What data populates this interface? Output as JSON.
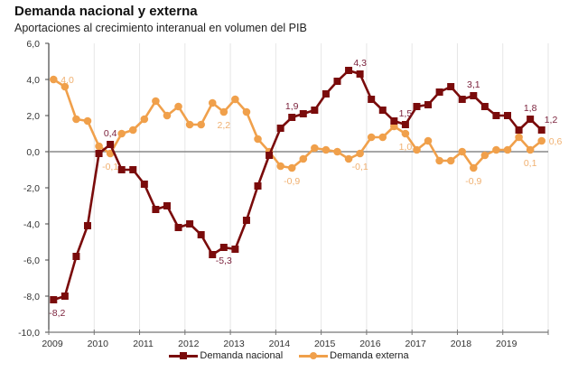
{
  "chart_data": {
    "type": "line",
    "title": "Demanda nacional y externa",
    "subtitle": "Aportaciones al crecimiento interanual en volumen del PIB",
    "xlabel": "",
    "ylabel": "",
    "ylim": [
      -10,
      6
    ],
    "yticks": [
      "6,0",
      "4,0",
      "2,0",
      "0,0",
      "-2,0",
      "-4,0",
      "-6,0",
      "-8,0",
      "-10,0"
    ],
    "ytick_values": [
      6,
      4,
      2,
      0,
      -2,
      -4,
      -6,
      -8,
      -10
    ],
    "xticks": [
      "2009",
      "2010",
      "2011",
      "2012",
      "2013",
      "2014",
      "2015",
      "2016",
      "2017",
      "2018",
      "2019"
    ],
    "x_frequency": "quarterly",
    "x_start": "2009 Q1",
    "x_end": "2019 Q4",
    "grid": "vertical-per-year",
    "legend_position": "bottom",
    "series": [
      {
        "name": "Demanda nacional",
        "color": "#7a0b0b",
        "label_color": "#7a1f3a",
        "marker": "square",
        "values": [
          -8.2,
          -8.0,
          -5.8,
          -4.1,
          -0.1,
          0.4,
          -1.0,
          -1.0,
          -1.8,
          -3.2,
          -3.0,
          -4.2,
          -4.0,
          -4.6,
          -5.7,
          -5.3,
          -5.4,
          -3.8,
          -1.9,
          -0.2,
          1.3,
          1.9,
          2.1,
          2.3,
          3.2,
          3.9,
          4.5,
          4.3,
          2.9,
          2.3,
          1.7,
          1.5,
          2.5,
          2.6,
          3.3,
          3.6,
          2.9,
          3.1,
          2.5,
          2.0,
          2.0,
          1.2,
          1.8,
          1.2
        ],
        "labels": [
          {
            "index": 0,
            "text": "-8,2",
            "pos": "below"
          },
          {
            "index": 5,
            "text": "0,4",
            "pos": "above"
          },
          {
            "index": 15,
            "text": "-5,3",
            "pos": "below"
          },
          {
            "index": 21,
            "text": "1,9",
            "pos": "above"
          },
          {
            "index": 27,
            "text": "4,3",
            "pos": "above"
          },
          {
            "index": 31,
            "text": "1,5",
            "pos": "above"
          },
          {
            "index": 37,
            "text": "3,1",
            "pos": "above"
          },
          {
            "index": 42,
            "text": "1,8",
            "pos": "above"
          },
          {
            "index": 43,
            "text": "1,2",
            "pos": "above-right"
          }
        ]
      },
      {
        "name": "Demanda externa",
        "color": "#f0a04b",
        "label_color": "#f0b070",
        "marker": "circle",
        "values": [
          4.0,
          3.6,
          1.8,
          1.7,
          0.3,
          -0.1,
          1.0,
          1.2,
          1.8,
          2.8,
          2.0,
          2.5,
          1.5,
          1.5,
          2.7,
          2.2,
          2.9,
          2.2,
          0.7,
          0.0,
          -0.8,
          -0.9,
          -0.4,
          0.2,
          0.1,
          0.0,
          -0.4,
          -0.1,
          0.8,
          0.8,
          1.4,
          1.0,
          0.1,
          0.6,
          -0.5,
          -0.5,
          0.0,
          -0.9,
          -0.2,
          0.1,
          0.1,
          0.8,
          0.1,
          0.6
        ],
        "labels": [
          {
            "index": 0,
            "text": "4,0",
            "pos": "right"
          },
          {
            "index": 5,
            "text": "-0,1",
            "pos": "below"
          },
          {
            "index": 15,
            "text": "2,2",
            "pos": "below"
          },
          {
            "index": 21,
            "text": "-0,9",
            "pos": "below"
          },
          {
            "index": 27,
            "text": "-0,1",
            "pos": "below"
          },
          {
            "index": 31,
            "text": "1,0",
            "pos": "below"
          },
          {
            "index": 37,
            "text": "-0,9",
            "pos": "below"
          },
          {
            "index": 42,
            "text": "0,1",
            "pos": "below"
          },
          {
            "index": 43,
            "text": "0,6",
            "pos": "right"
          }
        ]
      }
    ]
  },
  "legend": {
    "items": [
      {
        "label": "Demanda nacional",
        "color": "#7a0b0b"
      },
      {
        "label": "Demanda externa",
        "color": "#f0a04b"
      }
    ]
  }
}
